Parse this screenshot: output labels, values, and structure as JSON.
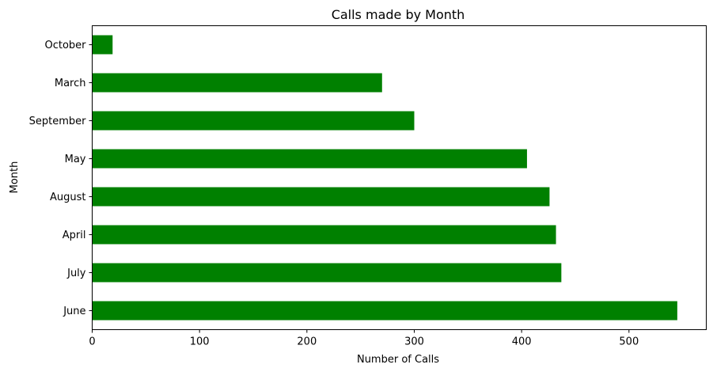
{
  "chart_data": {
    "type": "bar",
    "orientation": "horizontal",
    "title": "Calls made by Month",
    "xlabel": "Number of Calls",
    "ylabel": "Month",
    "categories": [
      "June",
      "July",
      "April",
      "August",
      "May",
      "September",
      "March",
      "October"
    ],
    "values": [
      545,
      437,
      432,
      426,
      405,
      300,
      270,
      19
    ],
    "xlim": [
      0,
      572
    ],
    "xticks": [
      0,
      100,
      200,
      300,
      400,
      500
    ],
    "grid": false,
    "bar_color": "#008000"
  }
}
